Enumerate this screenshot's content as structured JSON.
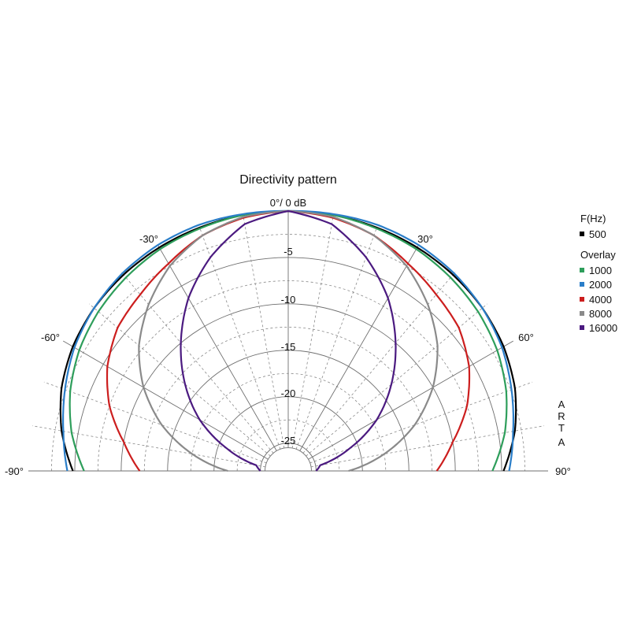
{
  "chart_data": {
    "type": "polar",
    "title": "Directivity pattern",
    "top_label": "0°/ 0 dB",
    "angle_labels": [
      "-30°",
      "30°",
      "-60°",
      "60°",
      "-90°",
      "90°"
    ],
    "radial_ticks": [
      "-5",
      "-10",
      "-15",
      "-20",
      "-25"
    ],
    "radial_range_db": [
      -28,
      0
    ],
    "angle_range_deg": [
      -90,
      90
    ],
    "grid": true,
    "legend": {
      "header": "F(Hz)",
      "overlay_label": "Overlay",
      "placement": "right"
    },
    "watermark": "ARTA",
    "series": [
      {
        "name": "500",
        "color": "#000000",
        "angles": [
          0,
          10,
          20,
          30,
          40,
          50,
          60,
          70,
          80,
          90
        ],
        "levels": [
          0,
          0,
          -0.1,
          -0.2,
          -0.4,
          -0.7,
          -1.2,
          -2.0,
          -3.2,
          -4.8
        ]
      },
      {
        "name": "1000",
        "color": "#2e9e5b",
        "angles": [
          0,
          10,
          20,
          30,
          40,
          50,
          60,
          70,
          80,
          90
        ],
        "levels": [
          0,
          0,
          -0.2,
          -0.4,
          -0.8,
          -1.3,
          -2.0,
          -3.0,
          -4.3,
          -6.0
        ]
      },
      {
        "name": "2000",
        "color": "#2a7ec9",
        "angles": [
          0,
          10,
          20,
          30,
          40,
          50,
          60,
          70,
          80,
          90
        ],
        "levels": [
          0,
          0.1,
          0.2,
          0.1,
          -0.2,
          -0.7,
          -1.4,
          -2.4,
          -3.4,
          -4.2
        ]
      },
      {
        "name": "4000",
        "color": "#cc1e1e",
        "angles": [
          0,
          10,
          20,
          30,
          40,
          50,
          60,
          70,
          80,
          90
        ],
        "levels": [
          0,
          -0.3,
          -1.0,
          -2.2,
          -3.2,
          -4.0,
          -5.5,
          -7.5,
          -10.0,
          -12.0
        ]
      },
      {
        "name": "8000",
        "color": "#8a8a8a",
        "angles": [
          0,
          10,
          20,
          30,
          40,
          50,
          60,
          70,
          80,
          90
        ],
        "levels": [
          0,
          -0.2,
          -1.0,
          -2.5,
          -4.6,
          -7.0,
          -10.0,
          -13.5,
          -17.5,
          -21.5
        ]
      },
      {
        "name": "16000",
        "color": "#4b1a80",
        "angles": [
          0,
          10,
          20,
          30,
          40,
          50,
          60,
          70,
          80,
          90
        ],
        "levels": [
          0,
          -1.0,
          -3.5,
          -6.5,
          -10.0,
          -13.5,
          -17.0,
          -21.0,
          -24.5,
          -25.0
        ]
      }
    ]
  }
}
